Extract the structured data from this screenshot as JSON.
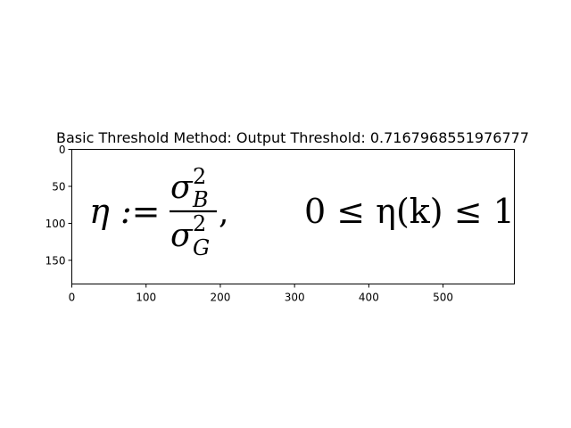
{
  "chart_data": {
    "type": "image",
    "title": "Basic Threshold Method: Output Threshold: 0.7167968551976777",
    "xlim": [
      0,
      596
    ],
    "ylim": [
      182,
      0
    ],
    "xticks": [
      0,
      100,
      200,
      300,
      400,
      500
    ],
    "yticks": [
      0,
      50,
      100,
      150
    ],
    "grid": false,
    "image_content": {
      "formula_left": {
        "lhs": "η :=",
        "numerator_base": "σ",
        "numerator_sup": "2",
        "numerator_sub": "B",
        "denominator_base": "σ",
        "denominator_sup": "2",
        "denominator_sub": "G",
        "trailing": ","
      },
      "formula_right": "0 ≤ η(k) ≤ 1"
    }
  }
}
